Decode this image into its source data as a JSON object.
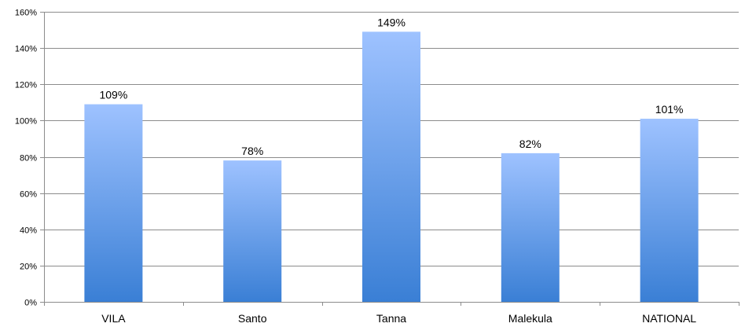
{
  "chart_data": {
    "type": "bar",
    "title": "",
    "xlabel": "",
    "ylabel": "",
    "categories": [
      "VILA",
      "Santo",
      "Tanna",
      "Malekula",
      "NATIONAL"
    ],
    "values": [
      109,
      78,
      149,
      82,
      101
    ],
    "data_labels": [
      "109%",
      "78%",
      "149%",
      "82%",
      "101%"
    ],
    "ylim": [
      0,
      160
    ],
    "yticks": [
      0,
      20,
      40,
      60,
      80,
      100,
      120,
      140,
      160
    ],
    "ytick_labels": [
      "0%",
      "20%",
      "40%",
      "60%",
      "80%",
      "100%",
      "120%",
      "140%",
      "160%"
    ],
    "grid": true,
    "legend": "none",
    "colors": {
      "bar_top": "#9EC2FF",
      "bar_bottom": "#3A7FD5",
      "grid": "#8C8C8C",
      "axis": "#8C8C8C"
    }
  }
}
